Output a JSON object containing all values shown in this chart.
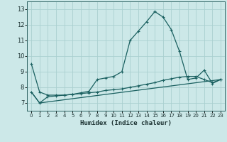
{
  "xlabel": "Humidex (Indice chaleur)",
  "background_color": "#cce8e8",
  "grid_color": "#aad0d0",
  "line_color": "#1a6060",
  "xlim": [
    -0.5,
    23.5
  ],
  "ylim": [
    6.5,
    13.5
  ],
  "yticks": [
    7,
    8,
    9,
    10,
    11,
    12,
    13
  ],
  "xticks": [
    0,
    1,
    2,
    3,
    4,
    5,
    6,
    7,
    8,
    9,
    10,
    11,
    12,
    13,
    14,
    15,
    16,
    17,
    18,
    19,
    20,
    21,
    22,
    23
  ],
  "series1_x": [
    0,
    1,
    2,
    3,
    4,
    5,
    6,
    7,
    8,
    9,
    10,
    11,
    12,
    13,
    14,
    15,
    16,
    17,
    18,
    19,
    20,
    21,
    22,
    23
  ],
  "series1_y": [
    9.5,
    7.7,
    7.5,
    7.5,
    7.5,
    7.55,
    7.65,
    7.75,
    8.5,
    8.6,
    8.7,
    9.0,
    11.0,
    11.6,
    12.2,
    12.85,
    12.5,
    11.7,
    10.3,
    8.5,
    8.6,
    9.1,
    8.25,
    8.5
  ],
  "series2_x": [
    0,
    1,
    2,
    3,
    4,
    5,
    6,
    7,
    8,
    9,
    10,
    11,
    12,
    13,
    14,
    15,
    16,
    17,
    18,
    19,
    20,
    21,
    22,
    23
  ],
  "series2_y": [
    7.7,
    7.0,
    7.4,
    7.45,
    7.5,
    7.55,
    7.6,
    7.65,
    7.7,
    7.8,
    7.85,
    7.9,
    8.0,
    8.1,
    8.2,
    8.3,
    8.45,
    8.55,
    8.65,
    8.7,
    8.7,
    8.5,
    8.3,
    8.5
  ],
  "series3_x": [
    0,
    1,
    23
  ],
  "series3_y": [
    7.7,
    7.0,
    8.5
  ]
}
